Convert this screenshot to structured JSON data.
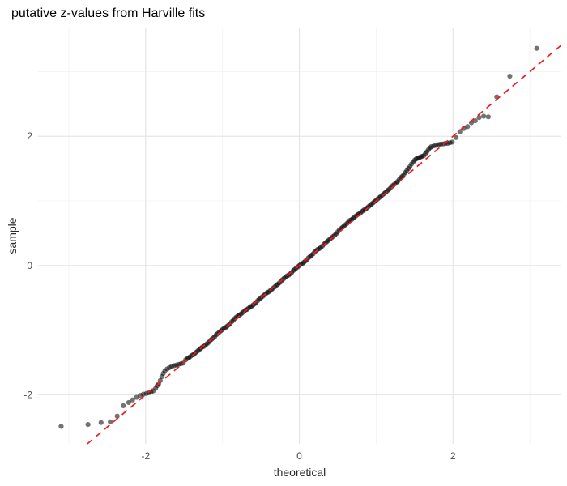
{
  "chart_data": {
    "type": "scatter",
    "title": "putative z-values from Harville fits",
    "xlabel": "theoretical",
    "ylabel": "sample",
    "x_ticks": [
      -2,
      0,
      2
    ],
    "y_ticks": [
      -2,
      0,
      2
    ],
    "x_minor_ticks": [
      -3,
      -1,
      1,
      3
    ],
    "y_minor_ticks": [
      -3,
      -1,
      1,
      3
    ],
    "xlim": [
      -3.4,
      3.41
    ],
    "ylim": [
      -2.76,
      3.67
    ],
    "grid": "major+minor",
    "legend": "none",
    "reference_line": {
      "style": "dashed",
      "color": "#f21b1b",
      "equation": "y = x",
      "x1": -2.76,
      "y1": -2.76,
      "x2": 3.41,
      "y2": 3.41
    },
    "point_style": {
      "color": "#000000",
      "alpha": 0.55,
      "radius_px": 3.1
    },
    "colors": {
      "background": "#ffffff",
      "grid_major": "#e6e6e6",
      "grid_minor": "#f2f2f2",
      "tick_text": "#4d4d4d",
      "axis_title_text": "#2b2b2b",
      "title_text": "#000000"
    },
    "points": [
      [
        -3.1,
        -2.49
      ],
      [
        -2.75,
        -2.46
      ],
      [
        -2.58,
        -2.43
      ],
      [
        -2.46,
        -2.42
      ],
      [
        -2.37,
        -2.33
      ],
      [
        -2.29,
        -2.17
      ],
      [
        -2.22,
        -2.12
      ],
      [
        -2.17,
        -2.08
      ],
      [
        -2.12,
        -2.04
      ],
      [
        -2.07,
        -2.01
      ],
      [
        -2.03,
        -1.99
      ],
      [
        -1.99,
        -1.98
      ],
      [
        -1.96,
        -1.97
      ],
      [
        -1.93,
        -1.96
      ],
      [
        -1.9,
        -1.94
      ],
      [
        -1.87,
        -1.9
      ],
      [
        -1.85,
        -1.86
      ],
      [
        -1.83,
        -1.83
      ],
      [
        -1.81,
        -1.78
      ],
      [
        -1.79,
        -1.72
      ],
      [
        -1.77,
        -1.67
      ],
      [
        -1.75,
        -1.63
      ],
      [
        -1.72,
        -1.6
      ],
      [
        -1.69,
        -1.58
      ],
      [
        -1.66,
        -1.56
      ],
      [
        -1.63,
        -1.55
      ],
      [
        -1.6,
        -1.54
      ],
      [
        -1.57,
        -1.53
      ],
      [
        -1.54,
        -1.52
      ],
      [
        -1.51,
        -1.51
      ],
      [
        -1.48,
        -1.46
      ],
      [
        -1.46,
        -1.44
      ],
      [
        -1.44,
        -1.43
      ],
      [
        -1.42,
        -1.41
      ],
      [
        -1.4,
        -1.39
      ],
      [
        -1.38,
        -1.38
      ],
      [
        -1.36,
        -1.36
      ],
      [
        -1.34,
        -1.34
      ],
      [
        -1.32,
        -1.32
      ],
      [
        -1.3,
        -1.3
      ],
      [
        -1.28,
        -1.28
      ],
      [
        -1.26,
        -1.26
      ],
      [
        -1.24,
        -1.25
      ],
      [
        -1.22,
        -1.23
      ],
      [
        -1.2,
        -1.21
      ],
      [
        -1.18,
        -1.19
      ],
      [
        -1.16,
        -1.16
      ],
      [
        -1.14,
        -1.14
      ],
      [
        -1.12,
        -1.12
      ],
      [
        -1.1,
        -1.1
      ],
      [
        -1.08,
        -1.07
      ],
      [
        -1.06,
        -1.05
      ],
      [
        -1.04,
        -1.03
      ],
      [
        -1.02,
        -1.01
      ],
      [
        -1.0,
        -0.99
      ],
      [
        -0.98,
        -0.97
      ],
      [
        -0.96,
        -0.96
      ],
      [
        -0.94,
        -0.94
      ],
      [
        -0.92,
        -0.92
      ],
      [
        -0.9,
        -0.9
      ],
      [
        -0.88,
        -0.87
      ],
      [
        -0.86,
        -0.85
      ],
      [
        -0.84,
        -0.82
      ],
      [
        -0.82,
        -0.8
      ],
      [
        -0.8,
        -0.78
      ],
      [
        -0.78,
        -0.77
      ],
      [
        -0.76,
        -0.75
      ],
      [
        -0.74,
        -0.73
      ],
      [
        -0.72,
        -0.71
      ],
      [
        -0.7,
        -0.69
      ],
      [
        -0.68,
        -0.68
      ],
      [
        -0.66,
        -0.66
      ],
      [
        -0.64,
        -0.64
      ],
      [
        -0.62,
        -0.63
      ],
      [
        -0.6,
        -0.61
      ],
      [
        -0.58,
        -0.59
      ],
      [
        -0.56,
        -0.57
      ],
      [
        -0.54,
        -0.54
      ],
      [
        -0.52,
        -0.52
      ],
      [
        -0.5,
        -0.5
      ],
      [
        -0.48,
        -0.48
      ],
      [
        -0.46,
        -0.46
      ],
      [
        -0.44,
        -0.44
      ],
      [
        -0.42,
        -0.42
      ],
      [
        -0.4,
        -0.41
      ],
      [
        -0.38,
        -0.39
      ],
      [
        -0.36,
        -0.37
      ],
      [
        -0.34,
        -0.35
      ],
      [
        -0.32,
        -0.33
      ],
      [
        -0.3,
        -0.31
      ],
      [
        -0.28,
        -0.29
      ],
      [
        -0.26,
        -0.27
      ],
      [
        -0.24,
        -0.25
      ],
      [
        -0.22,
        -0.22
      ],
      [
        -0.2,
        -0.2
      ],
      [
        -0.18,
        -0.18
      ],
      [
        -0.16,
        -0.16
      ],
      [
        -0.14,
        -0.15
      ],
      [
        -0.12,
        -0.13
      ],
      [
        -0.1,
        -0.11
      ],
      [
        -0.08,
        -0.08
      ],
      [
        -0.06,
        -0.06
      ],
      [
        -0.04,
        -0.04
      ],
      [
        -0.02,
        -0.02
      ],
      [
        0.0,
        0.0
      ],
      [
        0.02,
        0.02
      ],
      [
        0.04,
        0.03
      ],
      [
        0.06,
        0.05
      ],
      [
        0.08,
        0.07
      ],
      [
        0.1,
        0.09
      ],
      [
        0.12,
        0.12
      ],
      [
        0.14,
        0.14
      ],
      [
        0.16,
        0.16
      ],
      [
        0.18,
        0.18
      ],
      [
        0.2,
        0.21
      ],
      [
        0.22,
        0.23
      ],
      [
        0.24,
        0.25
      ],
      [
        0.26,
        0.26
      ],
      [
        0.28,
        0.28
      ],
      [
        0.3,
        0.3
      ],
      [
        0.32,
        0.33
      ],
      [
        0.34,
        0.35
      ],
      [
        0.36,
        0.37
      ],
      [
        0.38,
        0.39
      ],
      [
        0.4,
        0.41
      ],
      [
        0.42,
        0.43
      ],
      [
        0.44,
        0.45
      ],
      [
        0.46,
        0.47
      ],
      [
        0.48,
        0.49
      ],
      [
        0.5,
        0.52
      ],
      [
        0.52,
        0.55
      ],
      [
        0.54,
        0.57
      ],
      [
        0.56,
        0.59
      ],
      [
        0.58,
        0.61
      ],
      [
        0.6,
        0.63
      ],
      [
        0.62,
        0.65
      ],
      [
        0.64,
        0.68
      ],
      [
        0.66,
        0.7
      ],
      [
        0.68,
        0.71
      ],
      [
        0.7,
        0.73
      ],
      [
        0.72,
        0.75
      ],
      [
        0.74,
        0.77
      ],
      [
        0.76,
        0.79
      ],
      [
        0.78,
        0.8
      ],
      [
        0.8,
        0.82
      ],
      [
        0.82,
        0.84
      ],
      [
        0.84,
        0.86
      ],
      [
        0.86,
        0.87
      ],
      [
        0.88,
        0.89
      ],
      [
        0.9,
        0.91
      ],
      [
        0.92,
        0.93
      ],
      [
        0.94,
        0.95
      ],
      [
        0.96,
        0.97
      ],
      [
        0.98,
        0.99
      ],
      [
        1.0,
        1.01
      ],
      [
        1.02,
        1.03
      ],
      [
        1.04,
        1.05
      ],
      [
        1.06,
        1.07
      ],
      [
        1.08,
        1.09
      ],
      [
        1.1,
        1.11
      ],
      [
        1.12,
        1.13
      ],
      [
        1.14,
        1.15
      ],
      [
        1.16,
        1.17
      ],
      [
        1.18,
        1.19
      ],
      [
        1.2,
        1.22
      ],
      [
        1.22,
        1.24
      ],
      [
        1.24,
        1.26
      ],
      [
        1.26,
        1.28
      ],
      [
        1.28,
        1.3
      ],
      [
        1.3,
        1.33
      ],
      [
        1.32,
        1.36
      ],
      [
        1.34,
        1.38
      ],
      [
        1.36,
        1.41
      ],
      [
        1.38,
        1.44
      ],
      [
        1.4,
        1.47
      ],
      [
        1.42,
        1.5
      ],
      [
        1.44,
        1.53
      ],
      [
        1.46,
        1.57
      ],
      [
        1.48,
        1.6
      ],
      [
        1.5,
        1.63
      ],
      [
        1.52,
        1.65
      ],
      [
        1.54,
        1.66
      ],
      [
        1.56,
        1.67
      ],
      [
        1.58,
        1.68
      ],
      [
        1.6,
        1.69
      ],
      [
        1.62,
        1.7
      ],
      [
        1.64,
        1.73
      ],
      [
        1.66,
        1.76
      ],
      [
        1.68,
        1.79
      ],
      [
        1.7,
        1.82
      ],
      [
        1.72,
        1.84
      ],
      [
        1.75,
        1.85
      ],
      [
        1.78,
        1.86
      ],
      [
        1.81,
        1.87
      ],
      [
        1.84,
        1.88
      ],
      [
        1.87,
        1.88
      ],
      [
        1.9,
        1.89
      ],
      [
        1.93,
        1.89
      ],
      [
        1.96,
        1.9
      ],
      [
        1.99,
        1.91
      ],
      [
        2.04,
        1.98
      ],
      [
        2.09,
        2.07
      ],
      [
        2.14,
        2.12
      ],
      [
        2.19,
        2.15
      ],
      [
        2.24,
        2.21
      ],
      [
        2.29,
        2.24
      ],
      [
        2.34,
        2.29
      ],
      [
        2.4,
        2.31
      ],
      [
        2.46,
        2.3
      ],
      [
        2.57,
        2.61
      ],
      [
        2.74,
        2.93
      ],
      [
        3.09,
        3.36
      ]
    ]
  }
}
